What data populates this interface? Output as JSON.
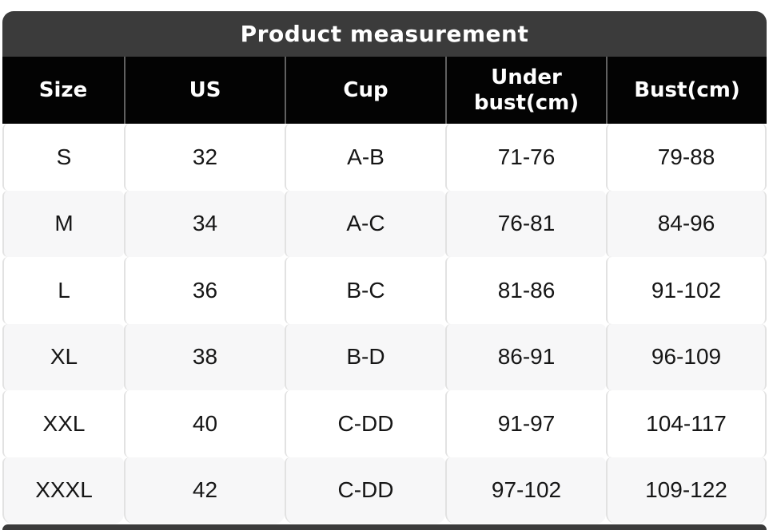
{
  "title": "Product measurement",
  "table": {
    "columns": [
      "Size",
      "US",
      "Cup",
      "Under bust(cm)",
      "Bust(cm)"
    ],
    "rows": [
      [
        "S",
        "32",
        "A-B",
        "71-76",
        "79-88"
      ],
      [
        "M",
        "34",
        "A-C",
        "76-81",
        "84-96"
      ],
      [
        "L",
        "36",
        "B-C",
        "81-86",
        "91-102"
      ],
      [
        "XL",
        "38",
        "B-D",
        "86-91",
        "96-109"
      ],
      [
        "XXL",
        "40",
        "C-DD",
        "91-97",
        "104-117"
      ],
      [
        "XXXL",
        "42",
        "C-DD",
        "97-102",
        "109-122"
      ]
    ]
  },
  "colors": {
    "title_bar": "#3b3b3b",
    "header_bg": "#030303",
    "header_text": "#ffffff",
    "header_separator": "#606060",
    "separator": "#e2e2e2",
    "row_odd_bg": "#ffffff",
    "row_even_bg": "#f7f7f8",
    "body_text": "#161616",
    "page_bg": "#ffffff",
    "next_section_bar": "#3b3b3b"
  }
}
